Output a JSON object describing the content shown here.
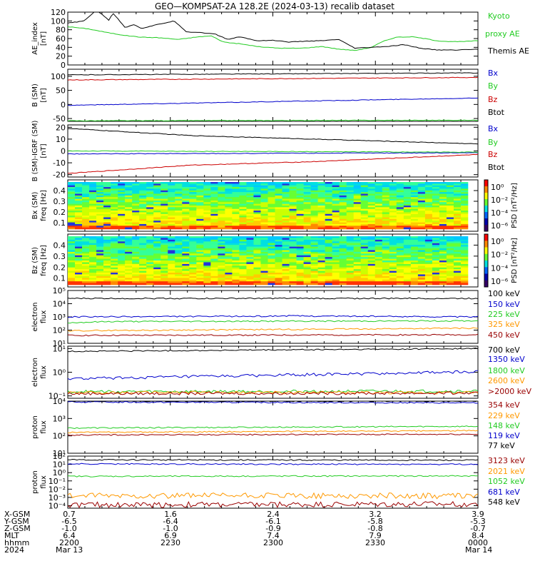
{
  "title": "GEO—KOMPSAT-2A 128.2E (2024-03-13) recalib dataset",
  "chart_data": [
    {
      "type": "line",
      "ylabel": [
        "AE_index",
        "[nT]"
      ],
      "ylim": [
        0,
        120
      ],
      "yticks": [
        "120",
        "100",
        "80",
        "60",
        "40",
        "20",
        "0"
      ],
      "yticks_values": [
        120,
        100,
        80,
        60,
        40,
        20,
        0
      ],
      "xlim": [
        0,
        1
      ],
      "legend_placement": "right",
      "series": [
        {
          "name": "Kyoto",
          "name2": "proxy AE",
          "color": "#22cc22",
          "x": [
            0,
            0.05,
            0.1,
            0.14,
            0.18,
            0.22,
            0.27,
            0.32,
            0.35,
            0.38,
            0.42,
            0.47,
            0.52,
            0.57,
            0.62,
            0.66,
            0.7,
            0.74,
            0.77,
            0.8,
            0.84,
            0.87,
            0.9,
            0.93,
            0.96,
            1
          ],
          "values": [
            87,
            82,
            73,
            67,
            63,
            62,
            58,
            64,
            66,
            52,
            48,
            41,
            38,
            38,
            42,
            36,
            33,
            40,
            54,
            63,
            64,
            60,
            55,
            53,
            53,
            55
          ]
        },
        {
          "name": "Themis AE",
          "color": "#000000",
          "x": [
            0,
            0.04,
            0.07,
            0.1,
            0.11,
            0.14,
            0.16,
            0.18,
            0.22,
            0.26,
            0.29,
            0.32,
            0.36,
            0.39,
            0.42,
            0.46,
            0.5,
            0.54,
            0.58,
            0.62,
            0.66,
            0.7,
            0.74,
            0.78,
            0.82,
            0.86,
            0.9,
            0.95,
            1
          ],
          "values": [
            95,
            100,
            125,
            102,
            118,
            85,
            92,
            83,
            92,
            100,
            75,
            74,
            70,
            58,
            64,
            55,
            56,
            52,
            54,
            55,
            58,
            38,
            40,
            42,
            46,
            38,
            34,
            34,
            36
          ]
        }
      ]
    },
    {
      "type": "line",
      "ylabel": [
        "B (SM)",
        "[nT]"
      ],
      "ylim": [
        -60,
        125
      ],
      "yticks": [
        "100",
        "50",
        "0",
        "-50"
      ],
      "yticks_values": [
        100,
        50,
        0,
        -50
      ],
      "xlim": [
        0,
        1
      ],
      "series": [
        {
          "name": "Bx",
          "color": "#0000cc",
          "x": [
            0,
            1
          ],
          "values": [
            -3,
            23
          ]
        },
        {
          "name": "By",
          "color": "#22cc22",
          "x": [
            0,
            1
          ],
          "values": [
            -58,
            -56
          ]
        },
        {
          "name": "Bz",
          "color": "#cc0000",
          "x": [
            0,
            1
          ],
          "values": [
            87,
            96
          ]
        },
        {
          "name": "Btot",
          "color": "#000000",
          "x": [
            0,
            1
          ],
          "values": [
            105,
            112
          ]
        }
      ]
    },
    {
      "type": "line",
      "ylabel": [
        "B (SM)-IGRF (SM)",
        "[nT]"
      ],
      "ylim": [
        -22,
        22
      ],
      "yticks": [
        "20",
        "10",
        "0",
        "-10",
        "-20"
      ],
      "yticks_values": [
        20,
        10,
        0,
        -10,
        -20
      ],
      "xlim": [
        0,
        1
      ],
      "series": [
        {
          "name": "Bx",
          "color": "#0000cc",
          "x": [
            0,
            1
          ],
          "values": [
            -2.5,
            -1.5
          ]
        },
        {
          "name": "By",
          "color": "#22cc22",
          "x": [
            0,
            1
          ],
          "values": [
            0,
            -1
          ]
        },
        {
          "name": "Bz",
          "color": "#cc0000",
          "x": [
            0,
            0.3,
            0.6,
            1
          ],
          "values": [
            -19,
            -12,
            -9,
            -3
          ]
        },
        {
          "name": "Btot",
          "color": "#000000",
          "x": [
            0,
            0.3,
            0.6,
            1
          ],
          "values": [
            19,
            13,
            10,
            6
          ]
        }
      ]
    },
    {
      "type": "heatmap",
      "ylabel": [
        "Bx (SM)",
        "freq [Hz]"
      ],
      "ylim": [
        0.02,
        0.5
      ],
      "yticks": [
        "0.4",
        "0.3",
        "0.2",
        "0.1"
      ],
      "yticks_values": [
        0.4,
        0.3,
        0.2,
        0.1
      ],
      "colorbar_label": "PSD [nT²/Hz]",
      "colorbar_ticks": [
        "10⁰",
        "10⁻²",
        "10⁻⁴",
        "10⁻⁶"
      ]
    },
    {
      "type": "heatmap",
      "ylabel": [
        "Bz (SM)",
        "freq [Hz]"
      ],
      "ylim": [
        0.02,
        0.5
      ],
      "yticks": [
        "0.4",
        "0.3",
        "0.2",
        "0.1"
      ],
      "yticks_values": [
        0.4,
        0.3,
        0.2,
        0.1
      ],
      "colorbar_label": "PSD [nT²/Hz]",
      "colorbar_ticks": [
        "10⁰",
        "10⁻²",
        "10⁻⁴",
        "10⁻⁶"
      ]
    },
    {
      "type": "line",
      "ylabel": [
        "electron",
        "flux"
      ],
      "log_scale": true,
      "ylim_exp": [
        1,
        5
      ],
      "yticks": [
        "10⁵",
        "10⁴",
        "10³",
        "10²",
        "10¹"
      ],
      "yticks_values": [
        5,
        4,
        3,
        2,
        1
      ],
      "xlim": [
        0,
        1
      ],
      "series": [
        {
          "name": "100 keV",
          "color": "#000000",
          "x": [
            0,
            1
          ],
          "values": [
            4.4,
            4.4
          ]
        },
        {
          "name": "150 keV",
          "color": "#0000cc",
          "x": [
            0,
            0.48,
            0.52,
            1
          ],
          "values": [
            3.0,
            3.05,
            3.08,
            3.0
          ]
        },
        {
          "name": "225 keV",
          "color": "#22cc22",
          "x": [
            0,
            0.1,
            1
          ],
          "values": [
            2.55,
            2.65,
            2.7
          ]
        },
        {
          "name": "325 keV",
          "color": "#ff9900",
          "x": [
            0,
            1
          ],
          "values": [
            1.95,
            2.15
          ]
        },
        {
          "name": "450 keV",
          "color": "#990000",
          "x": [
            0,
            1
          ],
          "values": [
            1.6,
            1.65
          ]
        }
      ]
    },
    {
      "type": "line",
      "ylabel": [
        "electron",
        "flux"
      ],
      "log_scale": true,
      "ylim_exp": [
        -1.1,
        1.1
      ],
      "yticks": [
        "10¹",
        "10⁰",
        "10⁻¹"
      ],
      "yticks_values": [
        1,
        0,
        -1
      ],
      "xlim": [
        0,
        1
      ],
      "series": [
        {
          "name": "700 keV",
          "color": "#000000",
          "x": [
            0,
            1
          ],
          "values": [
            0.88,
            1.0
          ]
        },
        {
          "name": "1350 keV",
          "color": "#0000cc",
          "x": [
            0,
            1
          ],
          "values": [
            -0.28,
            0.02
          ]
        },
        {
          "name": "1800 keV",
          "color": "#22cc22",
          "x": [
            0,
            1
          ],
          "values": [
            -0.82,
            -0.8
          ]
        },
        {
          "name": "2600 keV",
          "color": "#ff9900",
          "x": [
            0,
            1
          ],
          "values": [
            -0.86,
            -0.86
          ]
        },
        {
          "name": ">2000 keV",
          "color": "#990000",
          "x": [
            0,
            1
          ],
          "values": [
            -0.9,
            -0.88
          ]
        }
      ]
    },
    {
      "type": "line",
      "ylabel": [
        "proton",
        "flux"
      ],
      "log_scale": true,
      "ylim_exp": [
        1,
        4
      ],
      "yticks": [
        "10⁴",
        "10³",
        "10²",
        "10¹"
      ],
      "yticks_values": [
        4,
        3,
        2,
        1
      ],
      "xlim": [
        0,
        1
      ],
      "series": [
        {
          "name": "354 keV",
          "color": "#990000",
          "x": [
            0,
            1
          ],
          "values": [
            2.05,
            2.1
          ]
        },
        {
          "name": "229 keV",
          "color": "#ff9900",
          "x": [
            0,
            1
          ],
          "values": [
            2.2,
            2.3
          ]
        },
        {
          "name": "148 keV",
          "color": "#22cc22",
          "x": [
            0,
            1
          ],
          "values": [
            2.45,
            2.55
          ]
        },
        {
          "name": "119 keV",
          "color": "#0000cc",
          "x": [
            0,
            1
          ],
          "values": [
            3.95,
            3.9
          ]
        },
        {
          "name": "77 keV",
          "color": "#000000",
          "x": [
            0,
            1
          ],
          "values": [
            4.0,
            4.0
          ]
        }
      ]
    },
    {
      "type": "line",
      "ylabel": [
        "proton",
        "flux"
      ],
      "log_scale": true,
      "ylim_exp": [
        -4.3,
        2
      ],
      "yticks": [
        "10²",
        "10¹",
        "10⁰",
        "10⁻¹",
        "10⁻²",
        "10⁻³",
        "10⁻⁴"
      ],
      "yticks_values": [
        2,
        1,
        0,
        -1,
        -2,
        -3,
        -4
      ],
      "xlim": [
        0,
        1
      ],
      "series": [
        {
          "name": "3123 keV",
          "color": "#990000",
          "x": [
            0,
            1
          ],
          "values": [
            -3.9,
            -3.8
          ]
        },
        {
          "name": "2021 keV",
          "color": "#ff9900",
          "x": [
            0,
            1
          ],
          "values": [
            -2.8,
            -2.8
          ]
        },
        {
          "name": "1052 keV",
          "color": "#22cc22",
          "x": [
            0,
            1
          ],
          "values": [
            -0.45,
            -0.4
          ]
        },
        {
          "name": "681 keV",
          "color": "#0000cc",
          "x": [
            0,
            1
          ],
          "values": [
            1.05,
            1.0
          ]
        },
        {
          "name": "548 keV",
          "color": "#000000",
          "x": [
            0,
            1
          ],
          "values": [
            1.55,
            1.5
          ]
        }
      ]
    }
  ],
  "ephemeris": {
    "labels": [
      "X-GSM",
      "Y-GSM",
      "Z-GSM",
      "MLT",
      "hhmm",
      "2024"
    ],
    "columns": [
      {
        "values": [
          "0.7",
          "-6.5",
          "-1.0",
          "6.4",
          "2200",
          "Mar 13"
        ]
      },
      {
        "values": [
          "1.6",
          "-6.4",
          "-1.0",
          "6.9",
          "2230",
          ""
        ]
      },
      {
        "values": [
          "2.4",
          "-6.1",
          "-0.9",
          "7.4",
          "2300",
          ""
        ]
      },
      {
        "values": [
          "3.2",
          "-5.8",
          "-0.8",
          "7.9",
          "2330",
          ""
        ]
      },
      {
        "values": [
          "3.9",
          "-5.3",
          "-0.7",
          "8.4",
          "0000",
          "Mar 14"
        ]
      }
    ]
  }
}
